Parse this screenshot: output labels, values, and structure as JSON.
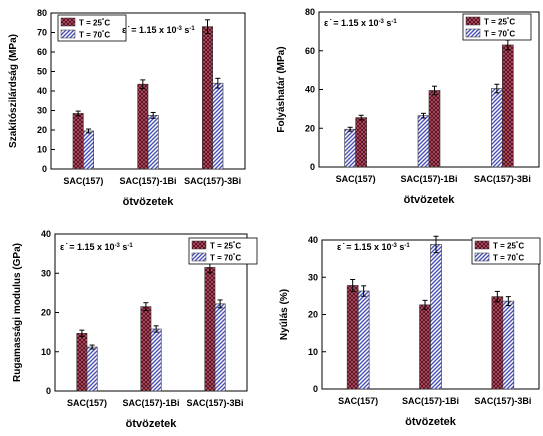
{
  "strain_rate": {
    "prefix": "ε ̇ = 1.15 x 10",
    "exp": "-3",
    "unit": " s",
    "unit_exp": "-1"
  },
  "legend": [
    {
      "name_base": "T = 25",
      "name_unit": "°C",
      "pattern": "crosshatch",
      "color": "#8b1a2a"
    },
    {
      "name_base": "T = 70",
      "name_unit": "°C",
      "pattern": "diagonal",
      "color": "#5a5fc0"
    }
  ],
  "chart_data": [
    {
      "type": "bar",
      "ylabel": "Szakítószilárdság (MPa)",
      "xlabel": "ötvözetek",
      "categories": [
        "SAC(157)",
        "SAC(157)-1Bi",
        "SAC(157)-3Bi"
      ],
      "ylim": [
        0,
        80
      ],
      "yticks": [
        0,
        10,
        20,
        30,
        40,
        50,
        60,
        70,
        80
      ],
      "series": [
        {
          "name": "T = 25°C",
          "values": [
            28.5,
            43.5,
            73
          ],
          "errors": [
            1.2,
            2.2,
            3.5
          ]
        },
        {
          "name": "T = 70°C",
          "values": [
            19.5,
            27.5,
            44
          ],
          "errors": [
            1.0,
            1.5,
            2.5
          ]
        }
      ]
    },
    {
      "type": "bar",
      "ylabel": "Folyáshatár (MPa)",
      "xlabel": "ötvözetek",
      "categories": [
        "SAC(157)",
        "SAC(157)-1Bi",
        "SAC(157)-3Bi"
      ],
      "ylim": [
        0,
        80
      ],
      "yticks": [
        0,
        20,
        40,
        60,
        80
      ],
      "series": [
        {
          "name": "T = 25°C",
          "values": [
            19.5,
            26.5,
            40.5
          ],
          "errors": [
            1.0,
            1.2,
            2.2
          ]
        },
        {
          "name": "T = 70°C",
          "values": [
            25.5,
            39.5,
            63
          ],
          "errors": [
            1.2,
            2.2,
            2.5
          ]
        }
      ]
    },
    {
      "type": "bar",
      "ylabel": "Rugamassági modulus (GPa)",
      "xlabel": "ötvözetek",
      "categories": [
        "SAC(157)",
        "SAC(157)-1Bi",
        "SAC(157)-3Bi"
      ],
      "ylim": [
        0,
        40
      ],
      "yticks": [
        0,
        10,
        20,
        30,
        40
      ],
      "series": [
        {
          "name": "T = 25°C",
          "values": [
            14.7,
            21.5,
            31.5
          ],
          "errors": [
            0.8,
            1.0,
            1.4
          ]
        },
        {
          "name": "T = 70°C",
          "values": [
            11.2,
            15.8,
            22.2
          ],
          "errors": [
            0.5,
            0.8,
            1.0
          ]
        }
      ]
    },
    {
      "type": "bar",
      "ylabel": "Nyúlás (%)",
      "xlabel": "ötvözetek",
      "categories": [
        "SAC(157)",
        "SAC(157)-1Bi",
        "SAC(157)-3Bi"
      ],
      "ylim": [
        0,
        40
      ],
      "yticks": [
        0,
        10,
        20,
        30,
        40
      ],
      "series": [
        {
          "name": "T = 25°C",
          "values": [
            27.8,
            22.6,
            24.8
          ],
          "errors": [
            1.6,
            1.2,
            1.4
          ]
        },
        {
          "name": "T = 70°C",
          "values": [
            26.3,
            38.8,
            23.6
          ],
          "errors": [
            1.4,
            2.2,
            1.2
          ]
        }
      ]
    }
  ]
}
